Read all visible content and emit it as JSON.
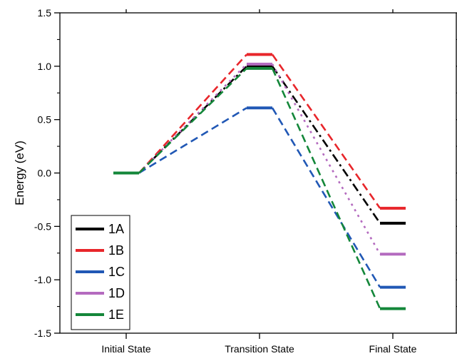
{
  "chart_data": {
    "type": "line",
    "title": "",
    "xlabel": "",
    "ylabel": "Energy (eV)",
    "categories": [
      "Initial State",
      "Transition State",
      "Final State"
    ],
    "ylim": [
      -1.5,
      1.5
    ],
    "yticks": [
      1.5,
      1.0,
      0.5,
      0.0,
      -0.5,
      -1.0,
      -1.5
    ],
    "ytick_labels": [
      "1.5",
      "1.0",
      "0.5",
      "0.0",
      "-0.5",
      "-1.0",
      "-1.5"
    ],
    "grid": false,
    "legend_position": "bottom-left",
    "series": [
      {
        "name": "1A",
        "values": [
          0.0,
          1.0,
          -0.47
        ],
        "color": "#000000",
        "dash": "dash-dot"
      },
      {
        "name": "1B",
        "values": [
          0.0,
          1.11,
          -0.33
        ],
        "color": "#e8262b",
        "dash": "dashed"
      },
      {
        "name": "1C",
        "values": [
          0.0,
          0.61,
          -1.07
        ],
        "color": "#2158b5",
        "dash": "dashed"
      },
      {
        "name": "1D",
        "values": [
          0.0,
          1.02,
          -0.76
        ],
        "color": "#b46bbf",
        "dash": "dotted"
      },
      {
        "name": "1E",
        "values": [
          0.0,
          0.98,
          -1.27
        ],
        "color": "#14873a",
        "dash": "dashed"
      }
    ]
  }
}
